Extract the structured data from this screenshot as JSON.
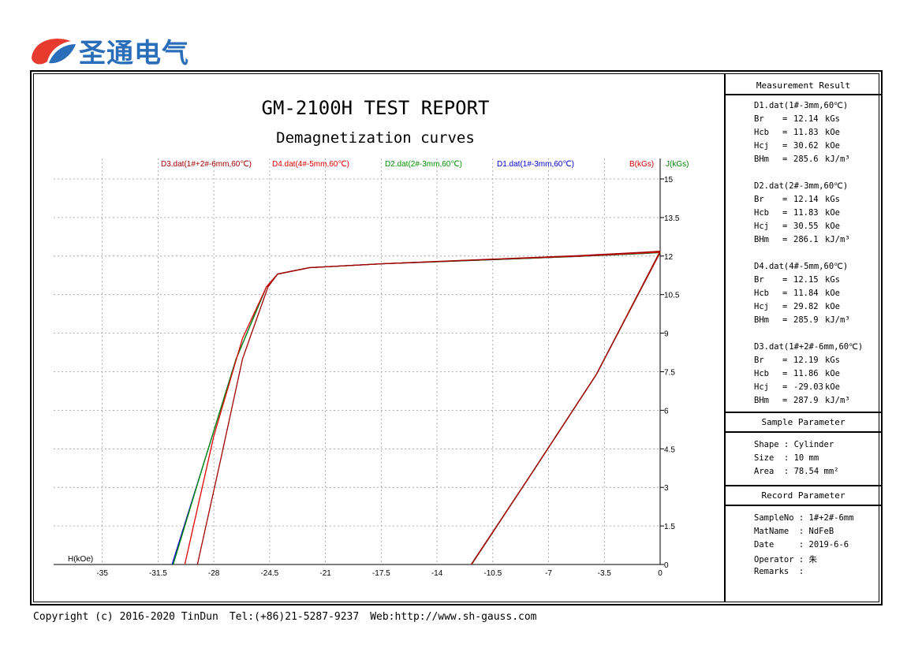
{
  "brand": {
    "logo_text": "圣通电气",
    "logo_icon": "brand-swirl-icon",
    "colors": {
      "red": "#e63b2e",
      "blue": "#2a6db8"
    }
  },
  "report": {
    "title": "GM-2100H TEST REPORT",
    "subtitle": "Demagnetization curves",
    "x_axis_label": "H(kOe)",
    "b_axis_label": "B(kGs)",
    "j_axis_label": "J(kGs)"
  },
  "chart_data": {
    "type": "line",
    "title": "GM-2100H TEST REPORT",
    "subtitle": "Demagnetization curves",
    "xlabel": "H(kOe)",
    "ylabel": "J(kGs)",
    "y2label": "B(kGs)",
    "xlim": [
      -38,
      0
    ],
    "ylim": [
      0,
      15.4
    ],
    "x_ticks": [
      "-35",
      "-31.5",
      "-28",
      "-24.5",
      "-21",
      "-17.5",
      "-14",
      "-10.5",
      "-7",
      "-3.5",
      "0"
    ],
    "y_ticks": [
      "0",
      "1.5",
      "3",
      "4.5",
      "6",
      "7.5",
      "9",
      "10.5",
      "12",
      "13.5",
      "15"
    ],
    "grid": true,
    "legend_position": "top",
    "series": [
      {
        "name": "D3.dat(1#+2#-6mm,60℃)",
        "color": "#a00000",
        "j_curve": [
          [
            -29.03,
            0
          ],
          [
            -27.6,
            4
          ],
          [
            -26.2,
            8
          ],
          [
            -24.6,
            10.8
          ],
          [
            -24.0,
            11.3
          ],
          [
            -22.0,
            11.55
          ],
          [
            -17.5,
            11.7
          ],
          [
            -10.5,
            11.88
          ],
          [
            -5,
            12.02
          ],
          [
            -1,
            12.15
          ],
          [
            0,
            12.19
          ]
        ],
        "b_curve": [
          [
            -11.86,
            0
          ],
          [
            -8,
            3.6
          ],
          [
            -4,
            7.4
          ],
          [
            0,
            12.19
          ]
        ]
      },
      {
        "name": "D4.dat(4#-5mm,60℃)",
        "color": "#e00000",
        "j_curve": [
          [
            -29.82,
            0
          ],
          [
            -28.0,
            5
          ],
          [
            -26.2,
            8.8
          ],
          [
            -24.7,
            10.8
          ],
          [
            -24.0,
            11.3
          ],
          [
            -22.0,
            11.55
          ],
          [
            -17.5,
            11.7
          ],
          [
            -10.5,
            11.87
          ],
          [
            -5,
            12.0
          ],
          [
            -1,
            12.12
          ],
          [
            0,
            12.15
          ]
        ],
        "b_curve": [
          [
            -11.84,
            0
          ],
          [
            -8,
            3.6
          ],
          [
            -4,
            7.4
          ],
          [
            0,
            12.15
          ]
        ]
      },
      {
        "name": "D2.dat(2#-3mm,60℃)",
        "color": "#009000",
        "j_curve": [
          [
            -30.55,
            0
          ],
          [
            -28.6,
            4
          ],
          [
            -26.6,
            8
          ],
          [
            -24.7,
            10.8
          ],
          [
            -24.0,
            11.3
          ],
          [
            -22.0,
            11.55
          ],
          [
            -17.5,
            11.7
          ],
          [
            -10.5,
            11.86
          ],
          [
            -5,
            11.99
          ],
          [
            -1,
            12.1
          ],
          [
            0,
            12.14
          ]
        ],
        "b_curve": [
          [
            -11.83,
            0
          ],
          [
            -8,
            3.6
          ],
          [
            -4,
            7.4
          ],
          [
            0,
            12.14
          ]
        ]
      },
      {
        "name": "D1.dat(1#-3mm,60℃)",
        "color": "#0000d0",
        "j_curve": [
          [
            -30.62,
            0
          ],
          [
            -28.6,
            4
          ],
          [
            -26.6,
            8
          ],
          [
            -24.7,
            10.8
          ],
          [
            -24.0,
            11.3
          ],
          [
            -22.0,
            11.55
          ],
          [
            -17.5,
            11.7
          ],
          [
            -10.5,
            11.86
          ],
          [
            -5,
            11.99
          ],
          [
            -1,
            12.1
          ],
          [
            0,
            12.14
          ]
        ],
        "b_curve": [
          [
            -11.83,
            0
          ],
          [
            -8,
            3.6
          ],
          [
            -4,
            7.4
          ],
          [
            0,
            12.14
          ]
        ]
      }
    ]
  },
  "measurement": {
    "title": "Measurement Result",
    "units": {
      "br": "kGs",
      "hcb": "kOe",
      "hcj": "kOe",
      "bhm": "kJ/m³"
    },
    "keys": {
      "br": "Br",
      "hcb": "Hcb",
      "hcj": "Hcj",
      "bhm": "BHm"
    },
    "equals": "=",
    "results": [
      {
        "name": "D1.dat(1#-3mm,60℃)",
        "br": "12.14",
        "hcb": "11.83",
        "hcj": "30.62",
        "bhm": "285.6"
      },
      {
        "name": "D2.dat(2#-3mm,60℃)",
        "br": "12.14",
        "hcb": "11.83",
        "hcj": "30.55",
        "bhm": "286.1"
      },
      {
        "name": "D4.dat(4#-5mm,60℃)",
        "br": "12.15",
        "hcb": "11.84",
        "hcj": "29.82",
        "bhm": "285.9"
      },
      {
        "name": "D3.dat(1#+2#-6mm,60℃)",
        "br": "12.19",
        "hcb": "11.86",
        "hcj": "-29.03",
        "bhm": "287.9"
      }
    ]
  },
  "sample": {
    "title": "Sample Parameter",
    "shape": "Shape : Cylinder",
    "size": "Size  : 10 mm",
    "area": "Area  : 78.54 mm²"
  },
  "record": {
    "title": "Record Parameter",
    "sample_no": "SampleNo : 1#+2#-6mm",
    "mat_name": "MatName  : NdFeB",
    "date": "Date     : 2019-6-6",
    "operator": "Operator : 朱",
    "remarks": "Remarks  :"
  },
  "footer": {
    "copyright": "Copyright (c) 2016-2020 TinDun",
    "tel": "Tel:(+86)21-5287-9237",
    "web": "Web:http://www.sh-gauss.com"
  }
}
